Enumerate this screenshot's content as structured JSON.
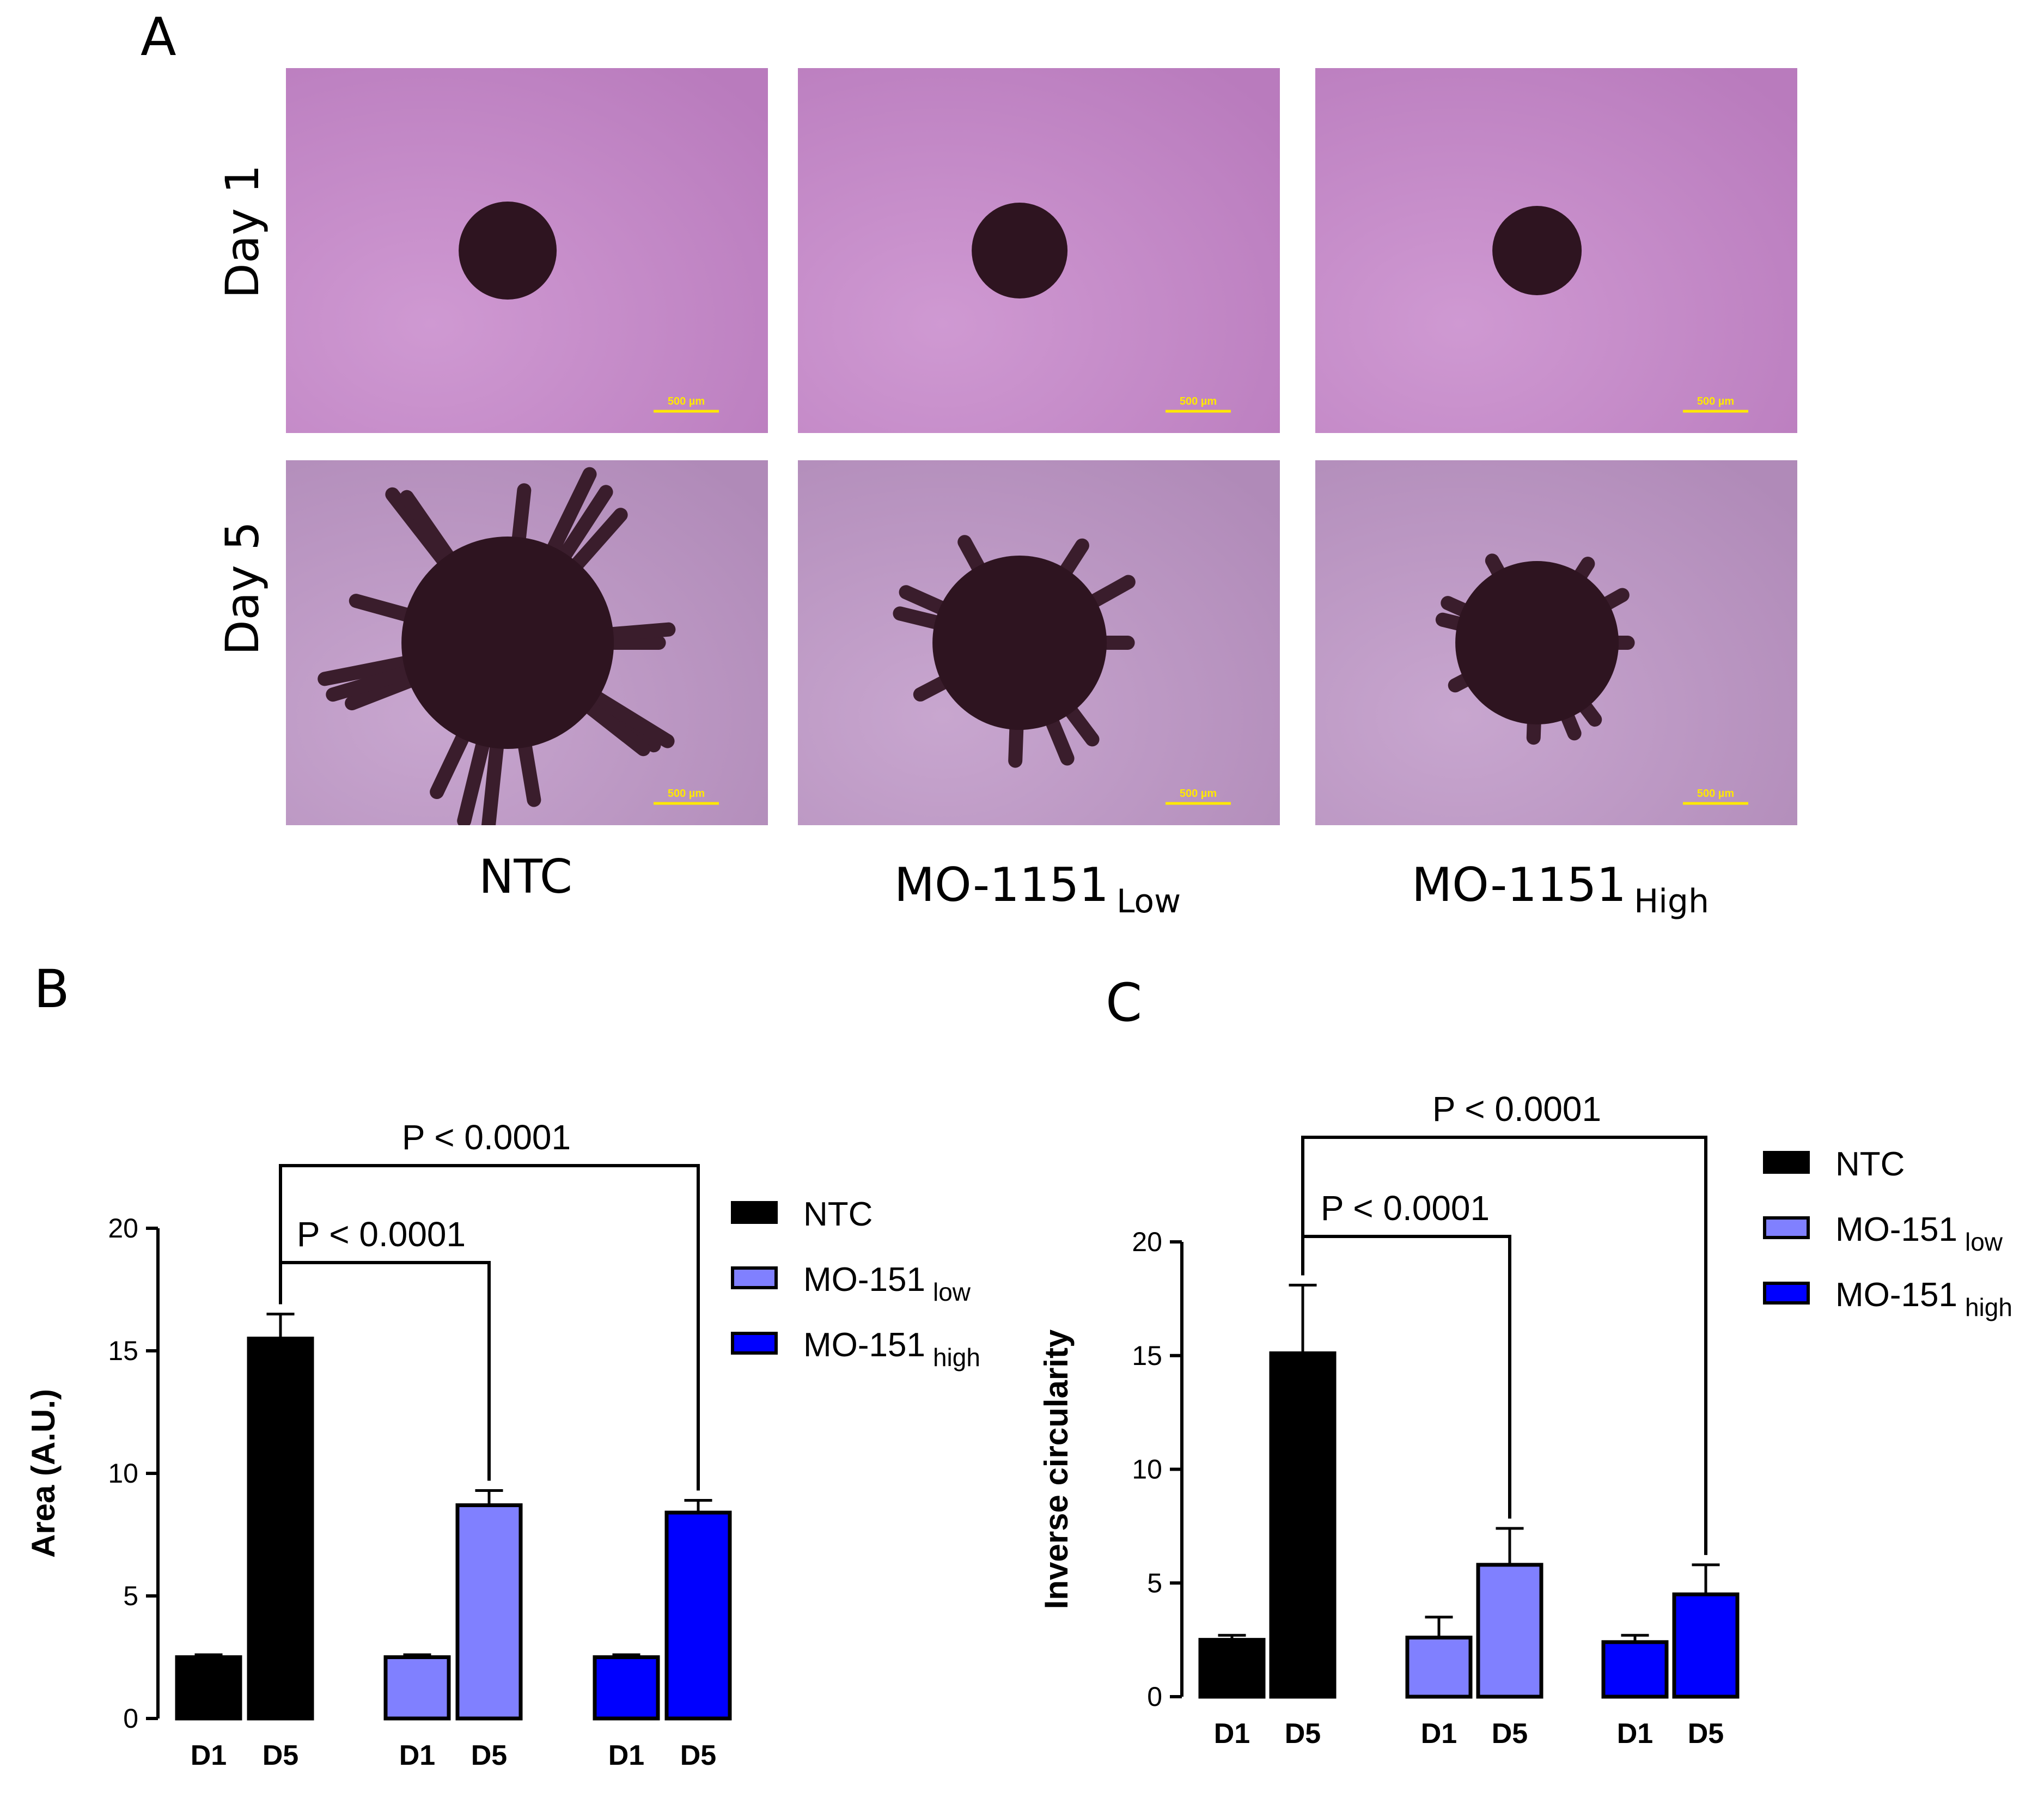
{
  "panels": {
    "a_letter": "A",
    "b_letter": "B",
    "c_letter": "C"
  },
  "micrographs": {
    "row_labels": [
      "Day 1",
      "Day 5"
    ],
    "columns": [
      {
        "name": "NTC",
        "sub": ""
      },
      {
        "name": "MO-1151",
        "sub": "Low"
      },
      {
        "name": "MO-1151",
        "sub": "High"
      }
    ],
    "scale_bar_label": "500 µm",
    "colors": {
      "background": "#b97bbd",
      "spheroid": "#2e1420",
      "scale_bar": "#ffe800"
    }
  },
  "chart_data": [
    {
      "type": "bar",
      "panel": "B",
      "ylabel": "Area (A.U.)",
      "ylim": [
        0,
        20
      ],
      "yticks": [
        0,
        5,
        10,
        15,
        20
      ],
      "groups": [
        "NTC",
        "MO-151 low",
        "MO-151 high"
      ],
      "categories": [
        "D1",
        "D5",
        "D1",
        "D5",
        "D1",
        "D5"
      ],
      "bars": [
        {
          "group": "NTC",
          "x": "D1",
          "value": 2.5,
          "error": 0.1
        },
        {
          "group": "NTC",
          "x": "D5",
          "value": 15.5,
          "error": 1.0
        },
        {
          "group": "MO-151 low",
          "x": "D1",
          "value": 2.5,
          "error": 0.1
        },
        {
          "group": "MO-151 low",
          "x": "D5",
          "value": 8.7,
          "error": 0.6
        },
        {
          "group": "MO-151 high",
          "x": "D1",
          "value": 2.5,
          "error": 0.1
        },
        {
          "group": "MO-151 high",
          "x": "D5",
          "value": 8.4,
          "error": 0.5
        }
      ],
      "comparisons": [
        {
          "from": 1,
          "to": 3,
          "label": "P < 0.0001"
        },
        {
          "from": 1,
          "to": 5,
          "label": "P < 0.0001"
        }
      ],
      "legend": [
        {
          "name": "NTC",
          "sub": "",
          "color": "#000000"
        },
        {
          "name": "MO-151",
          "sub": "low",
          "color": "#8080ff"
        },
        {
          "name": "MO-151",
          "sub": "high",
          "color": "#0000ff"
        }
      ],
      "legend_position": "right"
    },
    {
      "type": "bar",
      "panel": "C",
      "ylabel": "Inverse circularity",
      "ylim": [
        0,
        20
      ],
      "yticks": [
        0,
        5,
        10,
        15,
        20
      ],
      "groups": [
        "NTC",
        "MO-151 low",
        "MO-151 high"
      ],
      "categories": [
        "D1",
        "D5",
        "D1",
        "D5",
        "D1",
        "D5"
      ],
      "bars": [
        {
          "group": "NTC",
          "x": "D1",
          "value": 2.5,
          "error": 0.2
        },
        {
          "group": "NTC",
          "x": "D5",
          "value": 15.1,
          "error": 3.0
        },
        {
          "group": "MO-151 low",
          "x": "D1",
          "value": 2.6,
          "error": 0.9
        },
        {
          "group": "MO-151 low",
          "x": "D5",
          "value": 5.8,
          "error": 1.6
        },
        {
          "group": "MO-151 high",
          "x": "D1",
          "value": 2.4,
          "error": 0.3
        },
        {
          "group": "MO-151 high",
          "x": "D5",
          "value": 4.5,
          "error": 1.3
        }
      ],
      "comparisons": [
        {
          "from": 1,
          "to": 3,
          "label": "P < 0.0001"
        },
        {
          "from": 1,
          "to": 5,
          "label": "P < 0.0001"
        }
      ],
      "legend": [
        {
          "name": "NTC",
          "sub": "",
          "color": "#000000"
        },
        {
          "name": "MO-151",
          "sub": "low",
          "color": "#8080ff"
        },
        {
          "name": "MO-151",
          "sub": "high",
          "color": "#0000ff"
        }
      ],
      "legend_position": "top-right"
    }
  ]
}
